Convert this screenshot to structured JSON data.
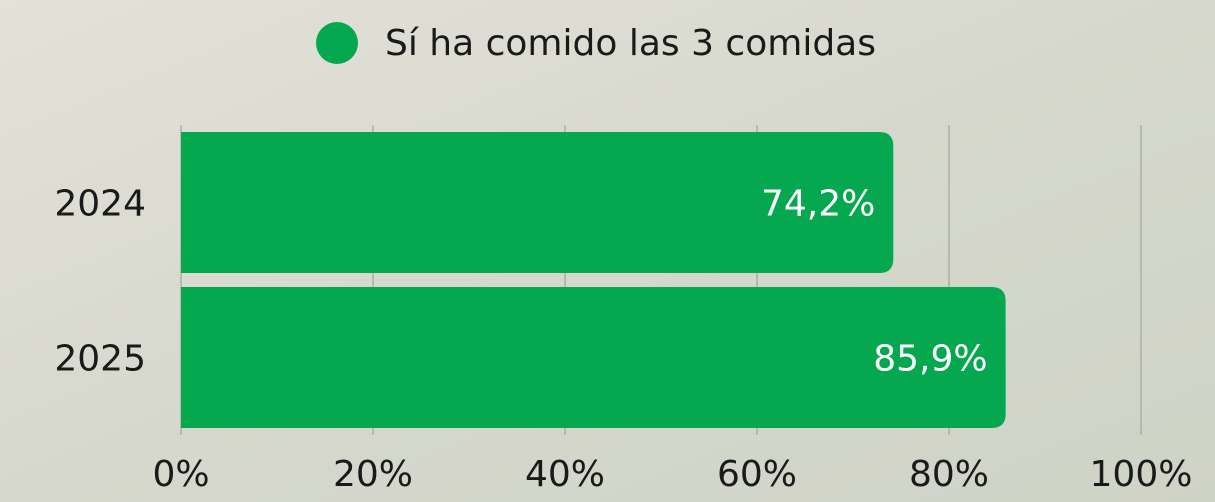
{
  "chart_data": {
    "type": "bar",
    "orientation": "horizontal",
    "categories": [
      "2024",
      "2025"
    ],
    "series": [
      {
        "name": "Sí ha comido las 3 comidas",
        "color": "#05a84f",
        "values": [
          74.2,
          85.9
        ],
        "value_labels": [
          "74,2%",
          "85,9%"
        ]
      }
    ],
    "xlim": [
      0,
      100
    ],
    "xticks": [
      {
        "value": 0,
        "label": "0%"
      },
      {
        "value": 20,
        "label": "20%"
      },
      {
        "value": 40,
        "label": "40%"
      },
      {
        "value": 60,
        "label": "60%"
      },
      {
        "value": 80,
        "label": "80%"
      },
      {
        "value": 100,
        "label": "100%"
      }
    ],
    "grid": true,
    "legend": "top"
  }
}
